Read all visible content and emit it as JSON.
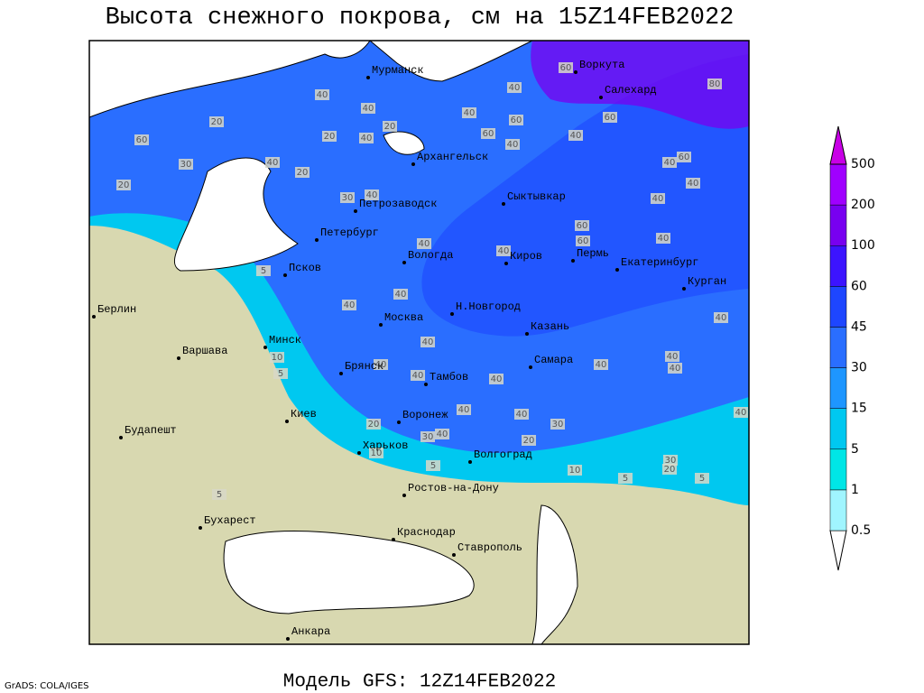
{
  "title": "Высота снежного покрова, см на 15Z14FEB2022",
  "footer": {
    "model": "Модель GFS: 12Z14FEB2022",
    "credit": "GrADS: COLA/IGES"
  },
  "legend": {
    "levels": [
      0.5,
      1,
      5,
      15,
      30,
      45,
      60,
      100,
      200,
      500
    ],
    "colors": [
      "#ffffff",
      "#a0f5ff",
      "#00e6e6",
      "#00c8f0",
      "#1e96ff",
      "#2a6eff",
      "#1e46ff",
      "#3c14ff",
      "#7800f0",
      "#a000ff",
      "#c800e6"
    ]
  },
  "cities": [
    "Мурманск",
    "Воркута",
    "Салехард",
    "Архангельск",
    "Петрозаводск",
    "Сыктывкар",
    "Петербург",
    "Вологда",
    "Киров",
    "Пермь",
    "Екатеринбург",
    "Курган",
    "Псков",
    "Н.Новгород",
    "Москва",
    "Казань",
    "Берлин",
    "Варшава",
    "Минск",
    "Брянск",
    "Тамбов",
    "Самара",
    "Воронеж",
    "Киев",
    "Харьков",
    "Волгоград",
    "Будапешт",
    "Ростов-на-Дону",
    "Бухарест",
    "Краснодар",
    "Ставрополь",
    "Анкара"
  ],
  "contour_labels": [
    40,
    40,
    40,
    20,
    40,
    40,
    60,
    80,
    60,
    60,
    60,
    40,
    40,
    60,
    40,
    40,
    40,
    20,
    20,
    40,
    20,
    60,
    30,
    20,
    30,
    40,
    40,
    40,
    60,
    40,
    40,
    40,
    40,
    40,
    40,
    40,
    40,
    40,
    40,
    40,
    40,
    30,
    20,
    30,
    40,
    20,
    10,
    30,
    20,
    5,
    40,
    5,
    10,
    5,
    5,
    5,
    5,
    10,
    60,
    40
  ]
}
